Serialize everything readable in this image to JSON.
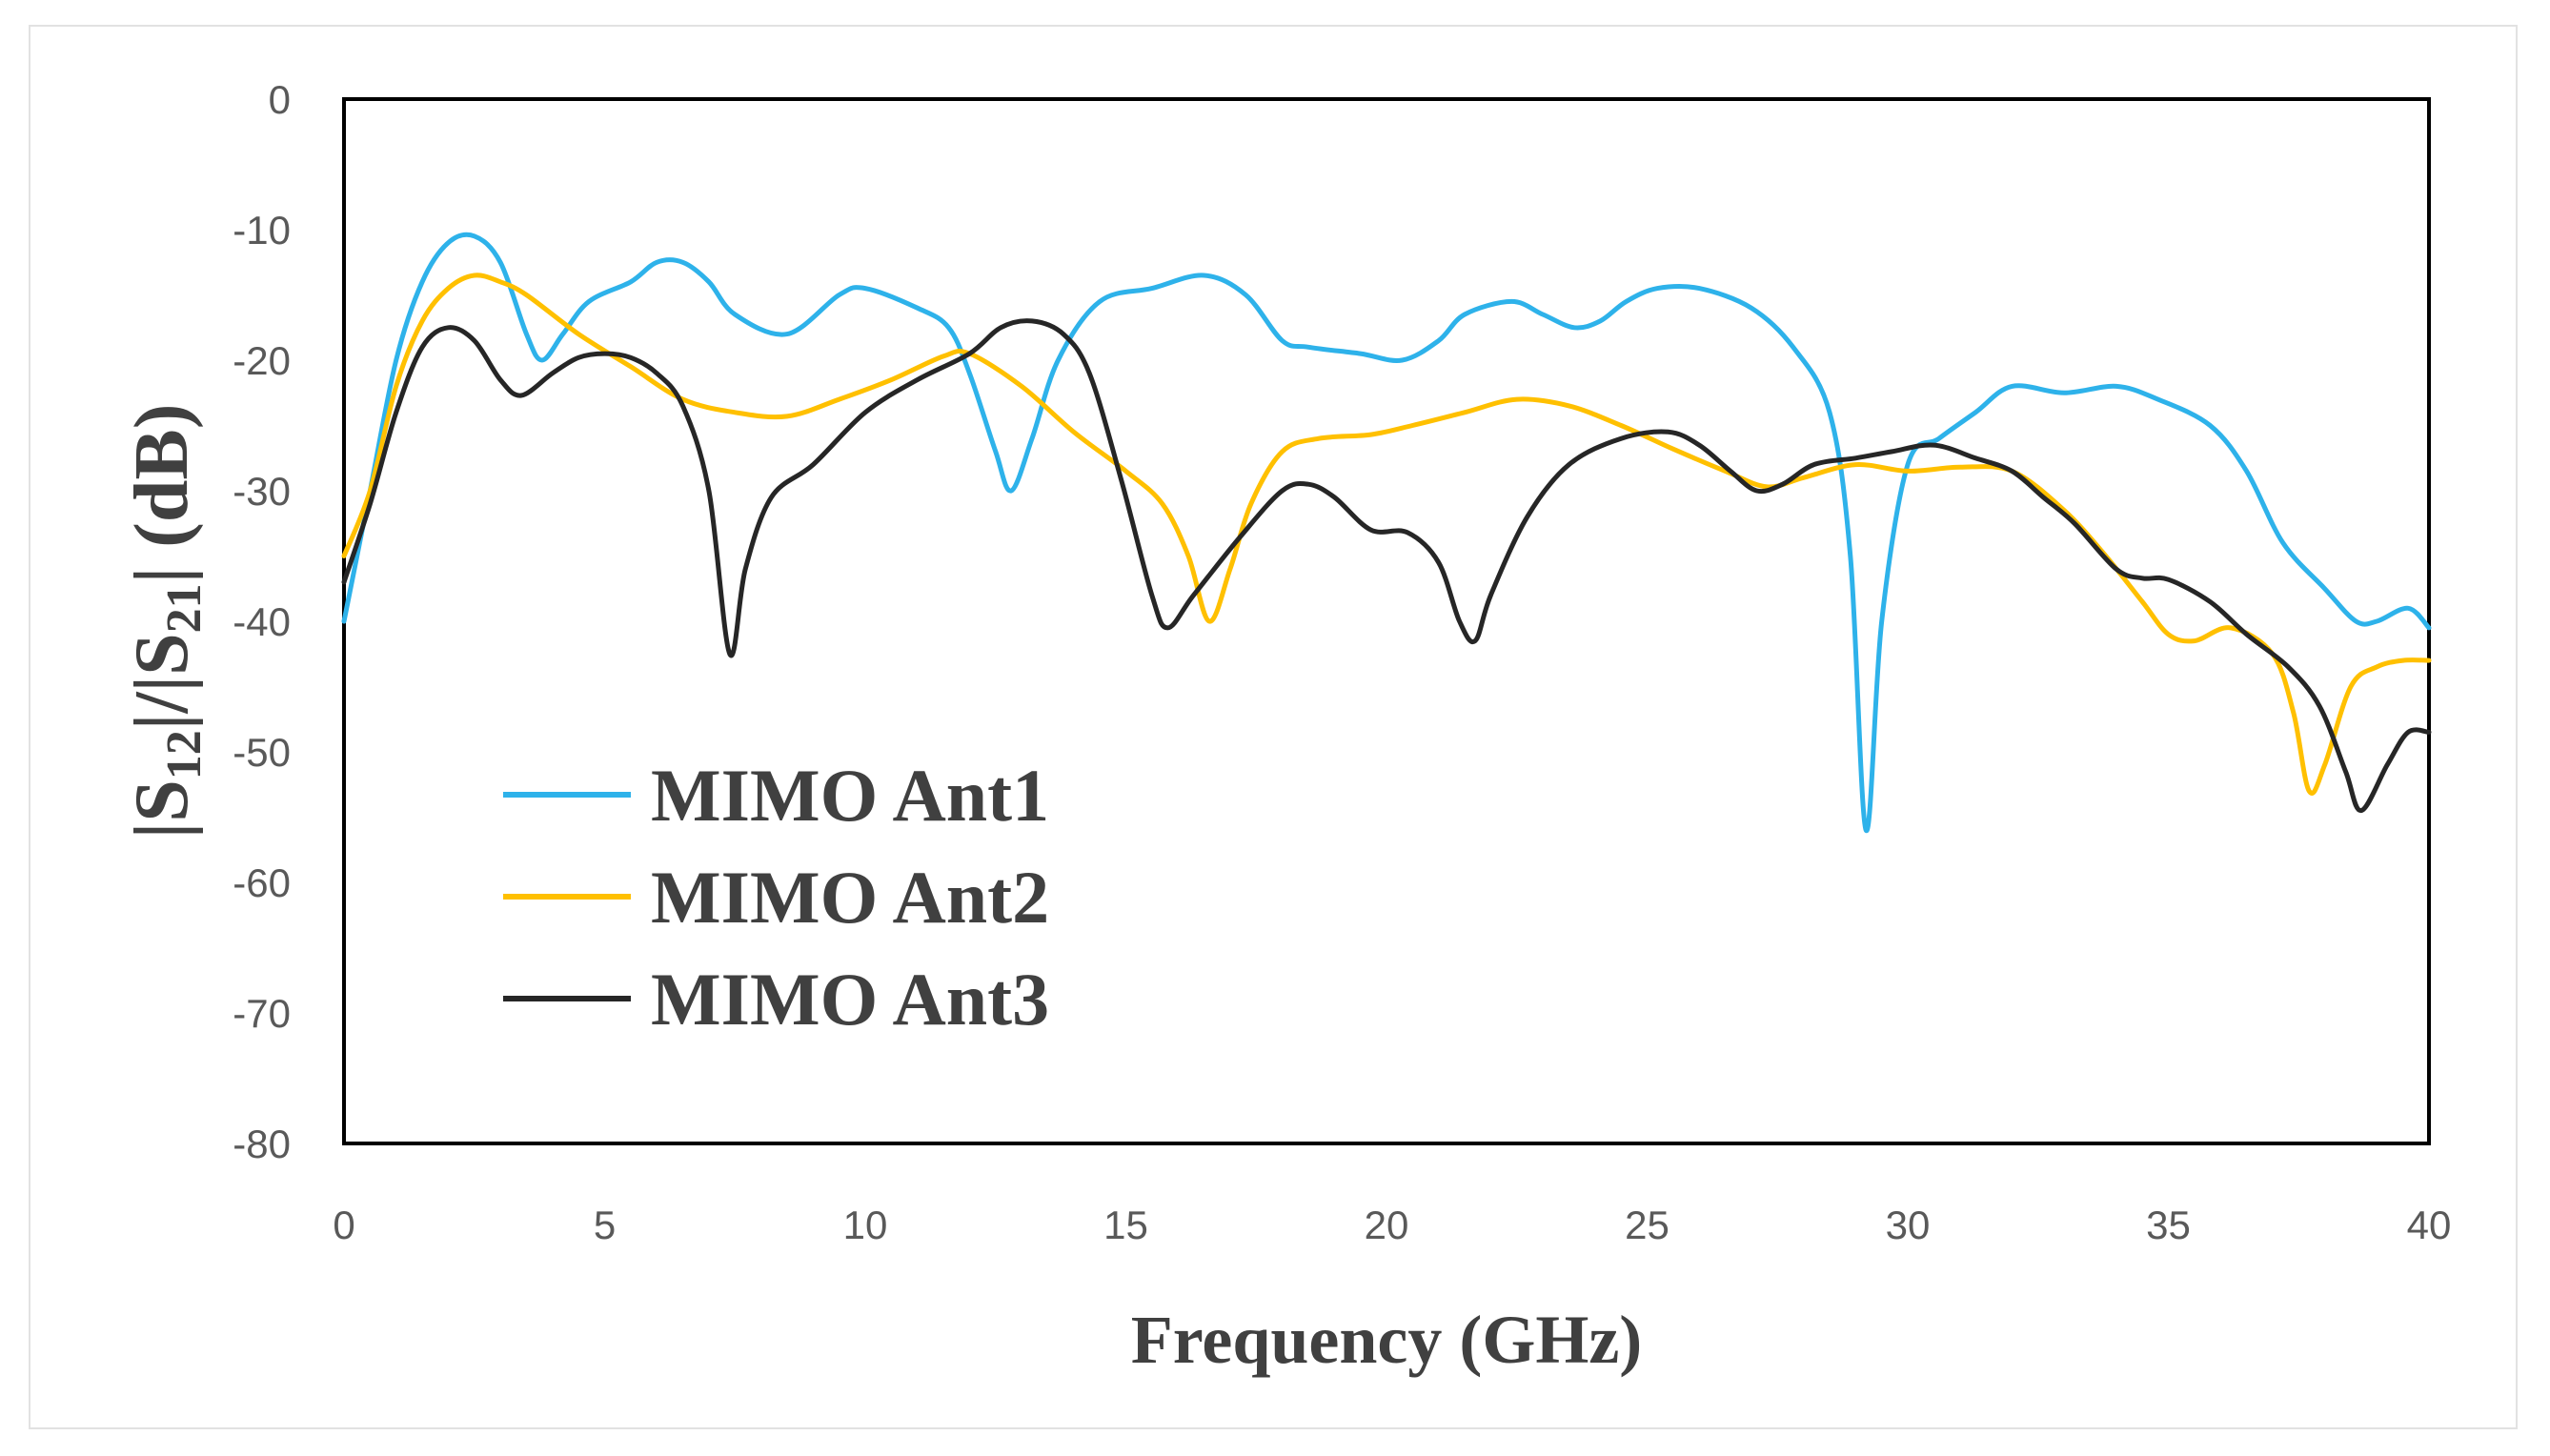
{
  "chart_data": {
    "type": "line",
    "title": "",
    "xlabel": "Frequency (GHz)",
    "ylabel": "|S12|/|S21| (dB)",
    "ylabel_parts": {
      "bar1": "|",
      "s1": "S",
      "sub1": "12",
      "mid": "|/|",
      "s2": "S",
      "sub2": "21",
      "end": "| (dB)"
    },
    "xlim": [
      0,
      40
    ],
    "ylim": [
      -80,
      0
    ],
    "x_ticks": [
      "0",
      "5",
      "10",
      "15",
      "20",
      "25",
      "30",
      "35",
      "40"
    ],
    "y_ticks": [
      "0",
      "-10",
      "-20",
      "-30",
      "-40",
      "-50",
      "-60",
      "-70",
      "-80"
    ],
    "x_tick_values": [
      0,
      5,
      10,
      15,
      20,
      25,
      30,
      35,
      40
    ],
    "y_tick_values": [
      0,
      -10,
      -20,
      -30,
      -40,
      -50,
      -60,
      -70,
      -80
    ],
    "grid": false,
    "legend_position": "lower-left",
    "series": [
      {
        "name": "MIMO Ant1",
        "color": "#2eb2ea",
        "points": [
          [
            0,
            -40
          ],
          [
            0.5,
            -30
          ],
          [
            1,
            -20
          ],
          [
            1.5,
            -14
          ],
          [
            2,
            -11
          ],
          [
            2.5,
            -10.5
          ],
          [
            3,
            -12.5
          ],
          [
            3.5,
            -18
          ],
          [
            3.8,
            -20
          ],
          [
            4.2,
            -18
          ],
          [
            4.7,
            -15.5
          ],
          [
            5.5,
            -14
          ],
          [
            6,
            -12.5
          ],
          [
            6.5,
            -12.5
          ],
          [
            7,
            -14
          ],
          [
            7.5,
            -16.5
          ],
          [
            8.5,
            -18
          ],
          [
            9.5,
            -15
          ],
          [
            10,
            -14.5
          ],
          [
            11,
            -16
          ],
          [
            11.6,
            -17.5
          ],
          [
            12,
            -21
          ],
          [
            12.5,
            -27
          ],
          [
            12.8,
            -30
          ],
          [
            13.2,
            -26
          ],
          [
            13.7,
            -20
          ],
          [
            14.5,
            -15.5
          ],
          [
            15.5,
            -14.5
          ],
          [
            16.5,
            -13.5
          ],
          [
            17.3,
            -15
          ],
          [
            18,
            -18.5
          ],
          [
            18.5,
            -19
          ],
          [
            19.5,
            -19.5
          ],
          [
            20.3,
            -20
          ],
          [
            21,
            -18.5
          ],
          [
            21.5,
            -16.5
          ],
          [
            22.4,
            -15.5
          ],
          [
            23,
            -16.5
          ],
          [
            23.6,
            -17.5
          ],
          [
            24.1,
            -17
          ],
          [
            24.6,
            -15.5
          ],
          [
            25.2,
            -14.5
          ],
          [
            26,
            -14.5
          ],
          [
            27,
            -16
          ],
          [
            27.8,
            -19
          ],
          [
            28.5,
            -24
          ],
          [
            28.9,
            -35
          ],
          [
            29.2,
            -56
          ],
          [
            29.5,
            -40
          ],
          [
            30,
            -28
          ],
          [
            30.6,
            -26
          ],
          [
            31.3,
            -24
          ],
          [
            32,
            -22
          ],
          [
            33,
            -22.5
          ],
          [
            34,
            -22
          ],
          [
            34.8,
            -23
          ],
          [
            35.8,
            -25
          ],
          [
            36.5,
            -28.5
          ],
          [
            37.2,
            -34
          ],
          [
            38,
            -37.5
          ],
          [
            38.6,
            -40
          ],
          [
            39,
            -40
          ],
          [
            39.6,
            -39
          ],
          [
            40,
            -40.5
          ]
        ]
      },
      {
        "name": "MIMO Ant2",
        "color": "#ffc000",
        "points": [
          [
            0,
            -35
          ],
          [
            0.5,
            -30
          ],
          [
            1,
            -22
          ],
          [
            1.5,
            -17
          ],
          [
            2,
            -14.5
          ],
          [
            2.5,
            -13.5
          ],
          [
            3,
            -14
          ],
          [
            3.5,
            -15
          ],
          [
            4.5,
            -18
          ],
          [
            5.5,
            -20.5
          ],
          [
            6.5,
            -23
          ],
          [
            7.5,
            -24
          ],
          [
            8.5,
            -24.3
          ],
          [
            9.5,
            -23
          ],
          [
            10.5,
            -21.5
          ],
          [
            11.5,
            -19.7
          ],
          [
            12,
            -19.5
          ],
          [
            13,
            -22
          ],
          [
            14,
            -25.5
          ],
          [
            15,
            -28.5
          ],
          [
            15.7,
            -31
          ],
          [
            16.2,
            -35
          ],
          [
            16.6,
            -40
          ],
          [
            17,
            -36
          ],
          [
            17.4,
            -31
          ],
          [
            18,
            -27
          ],
          [
            18.7,
            -26
          ],
          [
            19.7,
            -25.7
          ],
          [
            20.5,
            -25
          ],
          [
            21.5,
            -24
          ],
          [
            22.5,
            -23
          ],
          [
            23.5,
            -23.5
          ],
          [
            24.5,
            -25
          ],
          [
            25.5,
            -26.8
          ],
          [
            26.5,
            -28.5
          ],
          [
            27.3,
            -29.7
          ],
          [
            28,
            -29
          ],
          [
            29,
            -28
          ],
          [
            30,
            -28.5
          ],
          [
            31,
            -28.2
          ],
          [
            32,
            -28.5
          ],
          [
            33,
            -31.5
          ],
          [
            33.8,
            -35
          ],
          [
            34.5,
            -38.5
          ],
          [
            35,
            -41
          ],
          [
            35.5,
            -41.5
          ],
          [
            36.2,
            -40.5
          ],
          [
            37,
            -42.5
          ],
          [
            37.4,
            -47
          ],
          [
            37.7,
            -53
          ],
          [
            38,
            -51
          ],
          [
            38.5,
            -45
          ],
          [
            39,
            -43.5
          ],
          [
            39.5,
            -43
          ],
          [
            40,
            -43
          ]
        ]
      },
      {
        "name": "MIMO Ant3",
        "color": "#262626",
        "points": [
          [
            0,
            -37
          ],
          [
            0.5,
            -31
          ],
          [
            1,
            -24
          ],
          [
            1.5,
            -19
          ],
          [
            2,
            -17.5
          ],
          [
            2.5,
            -18.5
          ],
          [
            3,
            -21.5
          ],
          [
            3.4,
            -22.7
          ],
          [
            4,
            -21
          ],
          [
            4.5,
            -19.8
          ],
          [
            5,
            -19.5
          ],
          [
            5.5,
            -19.8
          ],
          [
            6,
            -21
          ],
          [
            6.5,
            -23.5
          ],
          [
            7,
            -30
          ],
          [
            7.4,
            -42.5
          ],
          [
            7.7,
            -36
          ],
          [
            8.2,
            -30.5
          ],
          [
            9,
            -28
          ],
          [
            10,
            -24
          ],
          [
            11,
            -21.5
          ],
          [
            12,
            -19.5
          ],
          [
            12.6,
            -17.5
          ],
          [
            13.2,
            -17
          ],
          [
            13.8,
            -18
          ],
          [
            14.3,
            -21
          ],
          [
            14.9,
            -29
          ],
          [
            15.5,
            -38
          ],
          [
            15.8,
            -40.5
          ],
          [
            16.3,
            -38
          ],
          [
            17.2,
            -33.5
          ],
          [
            18,
            -30
          ],
          [
            18.5,
            -29.5
          ],
          [
            19,
            -30.5
          ],
          [
            19.7,
            -33
          ],
          [
            20.4,
            -33.2
          ],
          [
            21,
            -35.5
          ],
          [
            21.4,
            -40
          ],
          [
            21.7,
            -41.5
          ],
          [
            22,
            -38
          ],
          [
            22.7,
            -32
          ],
          [
            23.5,
            -28
          ],
          [
            24.5,
            -26
          ],
          [
            25.4,
            -25.5
          ],
          [
            26,
            -26.5
          ],
          [
            26.6,
            -28.5
          ],
          [
            27.1,
            -30
          ],
          [
            27.6,
            -29.5
          ],
          [
            28.2,
            -28
          ],
          [
            29,
            -27.5
          ],
          [
            29.7,
            -27
          ],
          [
            30.5,
            -26.5
          ],
          [
            31.3,
            -27.5
          ],
          [
            32,
            -28.5
          ],
          [
            32.6,
            -30.5
          ],
          [
            33.2,
            -32.5
          ],
          [
            34,
            -36
          ],
          [
            34.5,
            -36.7
          ],
          [
            35,
            -36.8
          ],
          [
            35.8,
            -38.5
          ],
          [
            36.5,
            -41
          ],
          [
            37.3,
            -43.5
          ],
          [
            37.9,
            -46.5
          ],
          [
            38.4,
            -51.5
          ],
          [
            38.7,
            -54.5
          ],
          [
            39.2,
            -51
          ],
          [
            39.6,
            -48.5
          ],
          [
            40,
            -48.5
          ]
        ]
      }
    ]
  }
}
